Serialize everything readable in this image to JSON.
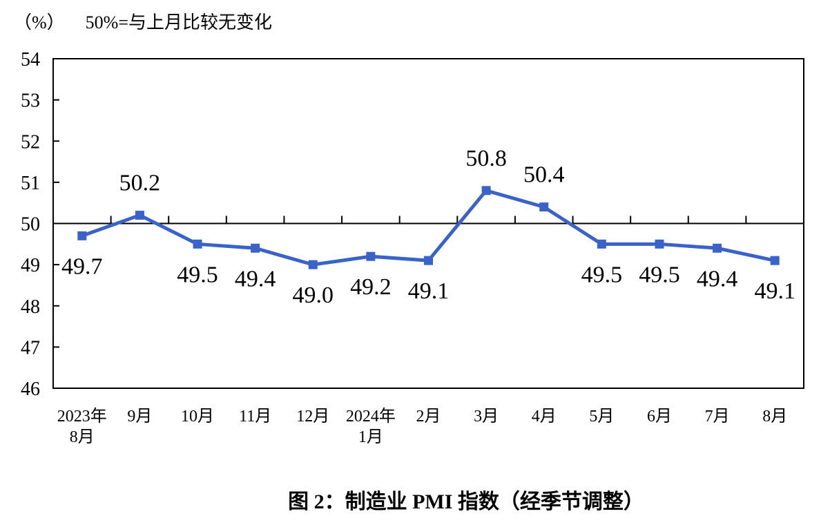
{
  "header": {
    "unit_label": "（%）",
    "note": "50%=与上月比较无变化"
  },
  "caption": "图 2：制造业 PMI 指数（经季节调整）",
  "chart_data": {
    "type": "line",
    "title": "图 2：制造业 PMI 指数（经季节调整）",
    "subtitle": "50%=与上月比较无变化",
    "xlabel": "",
    "ylabel": "（%）",
    "categories": [
      [
        "2023年",
        "8月"
      ],
      [
        "9月"
      ],
      [
        "10月"
      ],
      [
        "11月"
      ],
      [
        "12月"
      ],
      [
        "2024年",
        "1月"
      ],
      [
        "2月"
      ],
      [
        "3月"
      ],
      [
        "4月"
      ],
      [
        "5月"
      ],
      [
        "6月"
      ],
      [
        "7月"
      ],
      [
        "8月"
      ]
    ],
    "series": [
      {
        "name": "制造业PMI",
        "values": [
          49.7,
          50.2,
          49.5,
          49.4,
          49.0,
          49.2,
          49.1,
          50.8,
          50.4,
          49.5,
          49.5,
          49.4,
          49.1
        ],
        "data_labels": [
          "49.7",
          "50.2",
          "49.5",
          "49.4",
          "49.0",
          "49.2",
          "49.1",
          "50.8",
          "50.4",
          "49.5",
          "49.5",
          "49.4",
          "49.1"
        ],
        "label_positions": [
          "below",
          "above",
          "below",
          "below",
          "below",
          "below",
          "below",
          "above",
          "above",
          "below",
          "below",
          "below",
          "below"
        ],
        "color": "#3a63c9",
        "marker": "square"
      }
    ],
    "ylim": [
      46,
      54
    ],
    "ytick_interval": 1,
    "baseline_value": 50,
    "grid": "off",
    "legend": "none",
    "axis_color": "#000000"
  }
}
